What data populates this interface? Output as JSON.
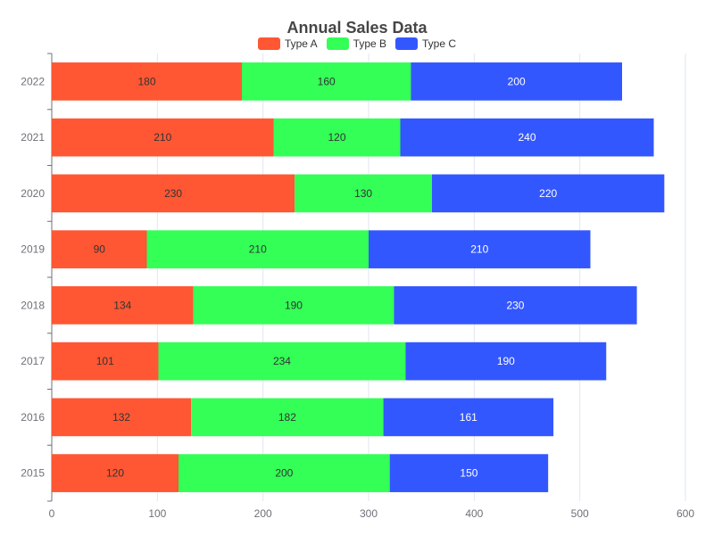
{
  "chart_data": {
    "type": "bar",
    "orientation": "horizontal",
    "stacked": true,
    "title": "Annual Sales Data",
    "categories": [
      "2015",
      "2016",
      "2017",
      "2018",
      "2019",
      "2020",
      "2021",
      "2022"
    ],
    "series": [
      {
        "name": "Type A",
        "color": "#ff5733",
        "label_color": "#333333",
        "values": [
          120,
          132,
          101,
          134,
          90,
          230,
          210,
          180
        ]
      },
      {
        "name": "Type B",
        "color": "#33ff57",
        "label_color": "#333333",
        "values": [
          200,
          182,
          234,
          190,
          210,
          130,
          120,
          160
        ]
      },
      {
        "name": "Type C",
        "color": "#3357ff",
        "label_color": "#ffffff",
        "values": [
          150,
          161,
          190,
          230,
          210,
          220,
          240,
          200
        ]
      }
    ],
    "xlim": [
      0,
      600
    ],
    "xticks": [
      0,
      100,
      200,
      300,
      400,
      500,
      600
    ],
    "xlabel": "",
    "ylabel": "",
    "grid": true,
    "legend_position": "top-center"
  }
}
